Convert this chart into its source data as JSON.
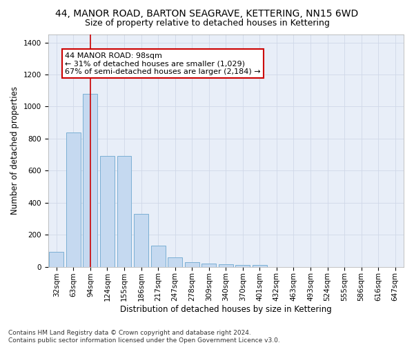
{
  "title": "44, MANOR ROAD, BARTON SEAGRAVE, KETTERING, NN15 6WD",
  "subtitle": "Size of property relative to detached houses in Kettering",
  "xlabel": "Distribution of detached houses by size in Kettering",
  "ylabel": "Number of detached properties",
  "categories": [
    "32sqm",
    "63sqm",
    "94sqm",
    "124sqm",
    "155sqm",
    "186sqm",
    "217sqm",
    "247sqm",
    "278sqm",
    "309sqm",
    "340sqm",
    "370sqm",
    "401sqm",
    "432sqm",
    "463sqm",
    "493sqm",
    "524sqm",
    "555sqm",
    "586sqm",
    "616sqm",
    "647sqm"
  ],
  "values": [
    95,
    840,
    1080,
    690,
    690,
    330,
    130,
    60,
    30,
    20,
    15,
    10,
    10,
    0,
    0,
    0,
    0,
    0,
    0,
    0,
    0
  ],
  "bar_color": "#c5d9f0",
  "bar_edge_color": "#7bafd4",
  "vline_x": 2,
  "vline_color": "#cc0000",
  "annotation_text": "44 MANOR ROAD: 98sqm\n← 31% of detached houses are smaller (1,029)\n67% of semi-detached houses are larger (2,184) →",
  "annotation_box_color": "#ffffff",
  "annotation_box_edge": "#cc0000",
  "ylim": [
    0,
    1450
  ],
  "yticks": [
    0,
    200,
    400,
    600,
    800,
    1000,
    1200,
    1400
  ],
  "grid_color": "#d0d8e8",
  "bg_color": "#e8eef8",
  "footer": "Contains HM Land Registry data © Crown copyright and database right 2024.\nContains public sector information licensed under the Open Government Licence v3.0.",
  "title_fontsize": 10,
  "subtitle_fontsize": 9,
  "axis_label_fontsize": 8.5,
  "tick_fontsize": 7.5,
  "footer_fontsize": 6.5,
  "ann_fontsize": 8
}
